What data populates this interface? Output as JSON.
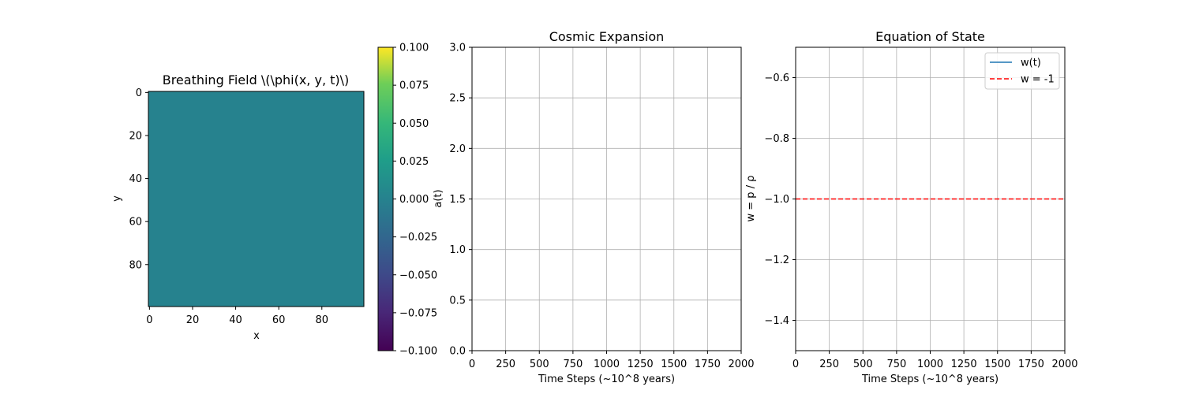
{
  "chart_data": [
    {
      "type": "heatmap",
      "title": "Breathing Field \\(\\phi(x, y, t)\\)",
      "xlabel": "x",
      "ylabel": "y",
      "xticks": [
        0,
        20,
        40,
        60,
        80
      ],
      "yticks": [
        0,
        20,
        40,
        60,
        80
      ],
      "extent": [
        -0.5,
        99.5
      ],
      "field_value": 0.0,
      "colormap": "viridis",
      "colorbar": {
        "vmin": -0.1,
        "vmax": 0.1,
        "ticks": [
          "−0.100",
          "−0.075",
          "−0.050",
          "−0.025",
          "0.000",
          "0.025",
          "0.050",
          "0.075",
          "0.100"
        ]
      }
    },
    {
      "type": "line",
      "title": "Cosmic Expansion",
      "xlabel": "Time Steps (~10^8 years)",
      "ylabel": "a(t)",
      "xlim": [
        0,
        2000
      ],
      "ylim": [
        0,
        3
      ],
      "xticks": [
        0,
        250,
        500,
        750,
        1000,
        1250,
        1500,
        1750,
        2000
      ],
      "yticks": [
        "0.0",
        "0.5",
        "1.0",
        "1.5",
        "2.0",
        "2.5",
        "3.0"
      ],
      "grid": true,
      "series": []
    },
    {
      "type": "line",
      "title": "Equation of State",
      "xlabel": "Time Steps (~10^8 years)",
      "ylabel": "w = p / ρ",
      "xlim": [
        0,
        2000
      ],
      "ylim": [
        -1.5,
        -0.5
      ],
      "xticks": [
        0,
        250,
        500,
        750,
        1000,
        1250,
        1500,
        1750,
        2000
      ],
      "yticks": [
        "−0.6",
        "−0.8",
        "−1.0",
        "−1.2",
        "−1.4"
      ],
      "grid": true,
      "legend": "top-right",
      "series": [
        {
          "name": "w(t)",
          "color": "#1f77b4",
          "style": "solid",
          "x": [],
          "y": []
        },
        {
          "name": "w = -1",
          "color": "#ff0000",
          "style": "dashed",
          "x": [
            0,
            2000
          ],
          "y": [
            -1.0,
            -1.0
          ]
        }
      ]
    }
  ]
}
